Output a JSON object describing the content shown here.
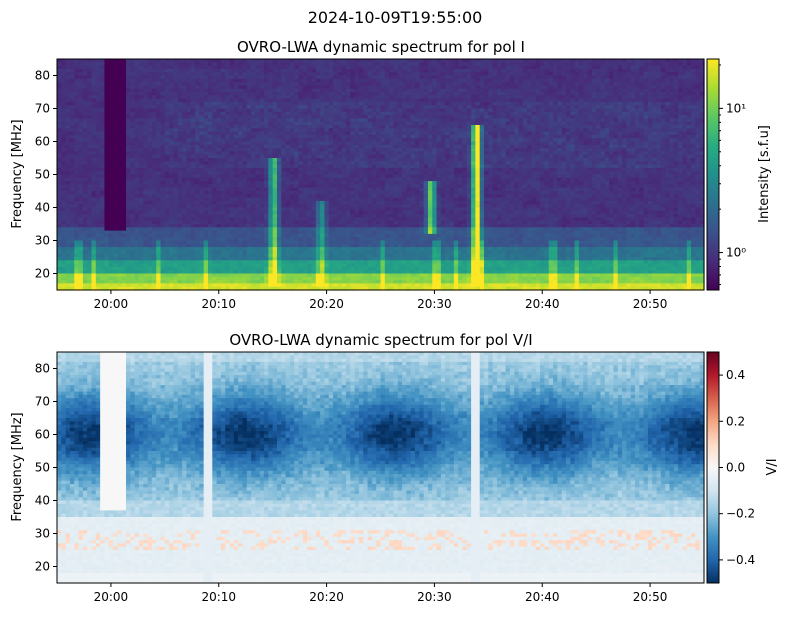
{
  "figure": {
    "suptitle": "2024-10-09T19:55:00"
  },
  "chart_data": [
    {
      "type": "heatmap",
      "title": "OVRO-LWA dynamic spectrum for pol I",
      "xlabel": "",
      "ylabel": "Frequency [MHz]",
      "x_tick_labels": [
        "20:00",
        "20:10",
        "20:20",
        "20:30",
        "20:40",
        "20:50"
      ],
      "x_tick_minutes": [
        5,
        15,
        25,
        35,
        45,
        55
      ],
      "xlim_minutes_after_1955": [
        0,
        60
      ],
      "y_ticks": [
        20,
        30,
        40,
        50,
        60,
        70,
        80
      ],
      "ylim": [
        15,
        85
      ],
      "colormap": "viridis",
      "color_scale": "log",
      "colorbar": {
        "label": "Intensity [s.f.u]",
        "range": [
          0.55,
          22
        ],
        "tick_values": [
          1,
          10
        ],
        "tick_labels": [
          "10⁰",
          "10¹"
        ]
      },
      "features": [
        {
          "kind": "data gap",
          "t_start_min": 4.5,
          "t_end_min": 6.5,
          "f_low_mhz": 33,
          "f_high_mhz": 85
        },
        {
          "kind": "burst",
          "t_min": 20.1,
          "f_low_mhz": 16,
          "f_high_mhz": 55,
          "strength": 0.55
        },
        {
          "kind": "burst",
          "t_min": 24.5,
          "f_low_mhz": 16,
          "f_high_mhz": 42,
          "strength": 0.35
        },
        {
          "kind": "burst",
          "t_min": 34.7,
          "f_low_mhz": 32,
          "f_high_mhz": 48,
          "strength": 0.65
        },
        {
          "kind": "burst",
          "t_min": 38.9,
          "f_low_mhz": 16,
          "f_high_mhz": 65,
          "strength": 0.9
        }
      ]
    },
    {
      "type": "heatmap",
      "title": "OVRO-LWA dynamic spectrum for pol V/I",
      "xlabel": "",
      "ylabel": "Frequency [MHz]",
      "x_tick_labels": [
        "20:00",
        "20:10",
        "20:20",
        "20:30",
        "20:40",
        "20:50"
      ],
      "x_tick_minutes": [
        5,
        15,
        25,
        35,
        45,
        55
      ],
      "xlim_minutes_after_1955": [
        0,
        60
      ],
      "y_ticks": [
        20,
        30,
        40,
        50,
        60,
        70,
        80
      ],
      "ylim": [
        15,
        85
      ],
      "colormap": "RdBu_r",
      "color_scale": "linear",
      "colorbar": {
        "label": "V/I",
        "range": [
          -0.5,
          0.5
        ],
        "tick_values": [
          -0.4,
          -0.2,
          0.0,
          0.2,
          0.4
        ],
        "tick_labels": [
          "−0.4",
          "−0.2",
          "0.0",
          "0.2",
          "0.4"
        ]
      },
      "features": [
        {
          "kind": "data gap",
          "t_start_min": 4.0,
          "t_end_min": 6.2,
          "f_low_mhz": 37,
          "f_high_mhz": 85
        },
        {
          "kind": "strong polarization region",
          "t_start_min": 7,
          "t_end_min": 60,
          "f_low_mhz": 45,
          "f_high_mhz": 78,
          "value": -0.45
        }
      ]
    }
  ]
}
